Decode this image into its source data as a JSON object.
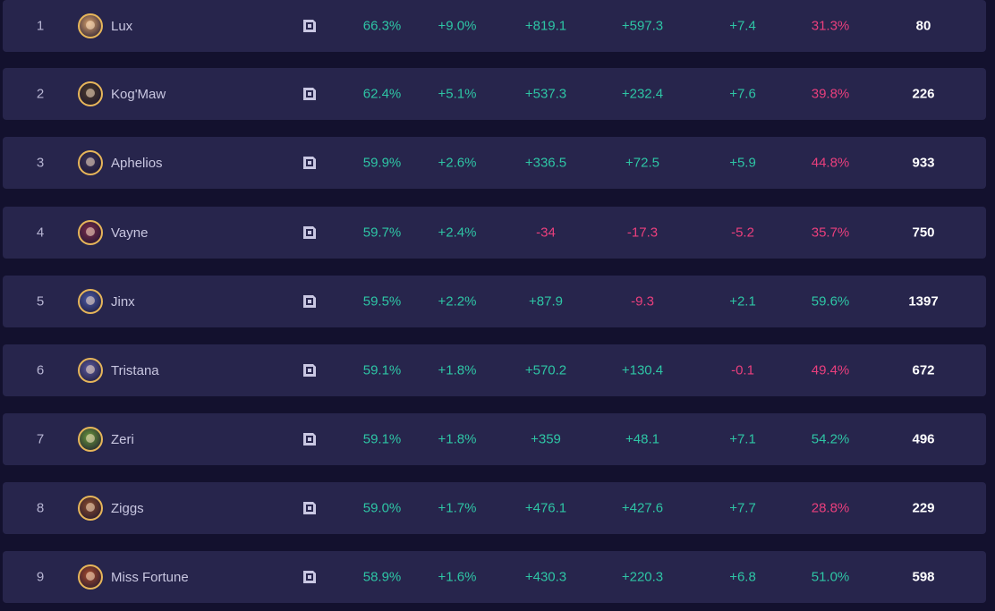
{
  "colors": {
    "positive": "#2ec5a5",
    "negative": "#ea3f7d",
    "row_bg": "#27254c",
    "page_bg": "#13112e",
    "avatar_border": "#e7b65a"
  },
  "rows": [
    {
      "rank": "1",
      "name": "Lux",
      "avatar": "#d8a06a",
      "wr": "66.3%",
      "d1": "+9.0%",
      "d2": "+819.1",
      "d3": "+597.3",
      "d4": "+7.4",
      "pct": "31.3%",
      "count": "80",
      "signs": [
        "pos",
        "pos",
        "pos",
        "pos",
        "pos",
        "neg"
      ]
    },
    {
      "rank": "2",
      "name": "Kog'Maw",
      "avatar": "#4a3a2a",
      "wr": "62.4%",
      "d1": "+5.1%",
      "d2": "+537.3",
      "d3": "+232.4",
      "d4": "+7.6",
      "pct": "39.8%",
      "count": "226",
      "signs": [
        "pos",
        "pos",
        "pos",
        "pos",
        "pos",
        "neg"
      ]
    },
    {
      "rank": "3",
      "name": "Aphelios",
      "avatar": "#3a3358",
      "wr": "59.9%",
      "d1": "+2.6%",
      "d2": "+336.5",
      "d3": "+72.5",
      "d4": "+5.9",
      "pct": "44.8%",
      "count": "933",
      "signs": [
        "pos",
        "pos",
        "pos",
        "pos",
        "pos",
        "neg"
      ]
    },
    {
      "rank": "4",
      "name": "Vayne",
      "avatar": "#7a2a4a",
      "wr": "59.7%",
      "d1": "+2.4%",
      "d2": "-34",
      "d3": "-17.3",
      "d4": "-5.2",
      "pct": "35.7%",
      "count": "750",
      "signs": [
        "pos",
        "pos",
        "neg",
        "neg",
        "neg",
        "neg"
      ]
    },
    {
      "rank": "5",
      "name": "Jinx",
      "avatar": "#4a5aa8",
      "wr": "59.5%",
      "d1": "+2.2%",
      "d2": "+87.9",
      "d3": "-9.3",
      "d4": "+2.1",
      "pct": "59.6%",
      "count": "1397",
      "signs": [
        "pos",
        "pos",
        "pos",
        "neg",
        "pos",
        "pos"
      ]
    },
    {
      "rank": "6",
      "name": "Tristana",
      "avatar": "#5a5aa0",
      "wr": "59.1%",
      "d1": "+1.8%",
      "d2": "+570.2",
      "d3": "+130.4",
      "d4": "-0.1",
      "pct": "49.4%",
      "count": "672",
      "signs": [
        "pos",
        "pos",
        "pos",
        "pos",
        "neg",
        "neg"
      ]
    },
    {
      "rank": "7",
      "name": "Zeri",
      "avatar": "#6a9a3a",
      "wr": "59.1%",
      "d1": "+1.8%",
      "d2": "+359",
      "d3": "+48.1",
      "d4": "+7.1",
      "pct": "54.2%",
      "count": "496",
      "signs": [
        "pos",
        "pos",
        "pos",
        "pos",
        "pos",
        "pos"
      ]
    },
    {
      "rank": "8",
      "name": "Ziggs",
      "avatar": "#8a4a2a",
      "wr": "59.0%",
      "d1": "+1.7%",
      "d2": "+476.1",
      "d3": "+427.6",
      "d4": "+7.7",
      "pct": "28.8%",
      "count": "229",
      "signs": [
        "pos",
        "pos",
        "pos",
        "pos",
        "pos",
        "neg"
      ]
    },
    {
      "rank": "9",
      "name": "Miss Fortune",
      "avatar": "#a84a2a",
      "wr": "58.9%",
      "d1": "+1.6%",
      "d2": "+430.3",
      "d3": "+220.3",
      "d4": "+6.8",
      "pct": "51.0%",
      "count": "598",
      "signs": [
        "pos",
        "pos",
        "pos",
        "pos",
        "pos",
        "pos"
      ]
    }
  ]
}
